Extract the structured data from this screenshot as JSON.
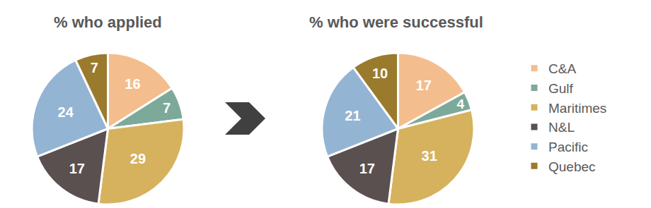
{
  "chart_data": [
    {
      "type": "pie",
      "title": "% who applied",
      "categories": [
        "C&A",
        "Gulf",
        "Maritimes",
        "N&L",
        "Pacific",
        "Quebec"
      ],
      "values": [
        16,
        7,
        29,
        17,
        24,
        7
      ],
      "colors": [
        "#f4bd8e",
        "#7da99a",
        "#d6b25e",
        "#5b5050",
        "#94b4d4",
        "#9a7a2c"
      ],
      "data_labels": true,
      "legend": "right"
    },
    {
      "type": "pie",
      "title": "% who were successful",
      "categories": [
        "C&A",
        "Gulf",
        "Maritimes",
        "N&L",
        "Pacific",
        "Quebec"
      ],
      "values": [
        17,
        4,
        31,
        17,
        21,
        10
      ],
      "colors": [
        "#f4bd8e",
        "#7da99a",
        "#d6b25e",
        "#5b5050",
        "#94b4d4",
        "#9a7a2c"
      ],
      "data_labels": true
    }
  ]
}
